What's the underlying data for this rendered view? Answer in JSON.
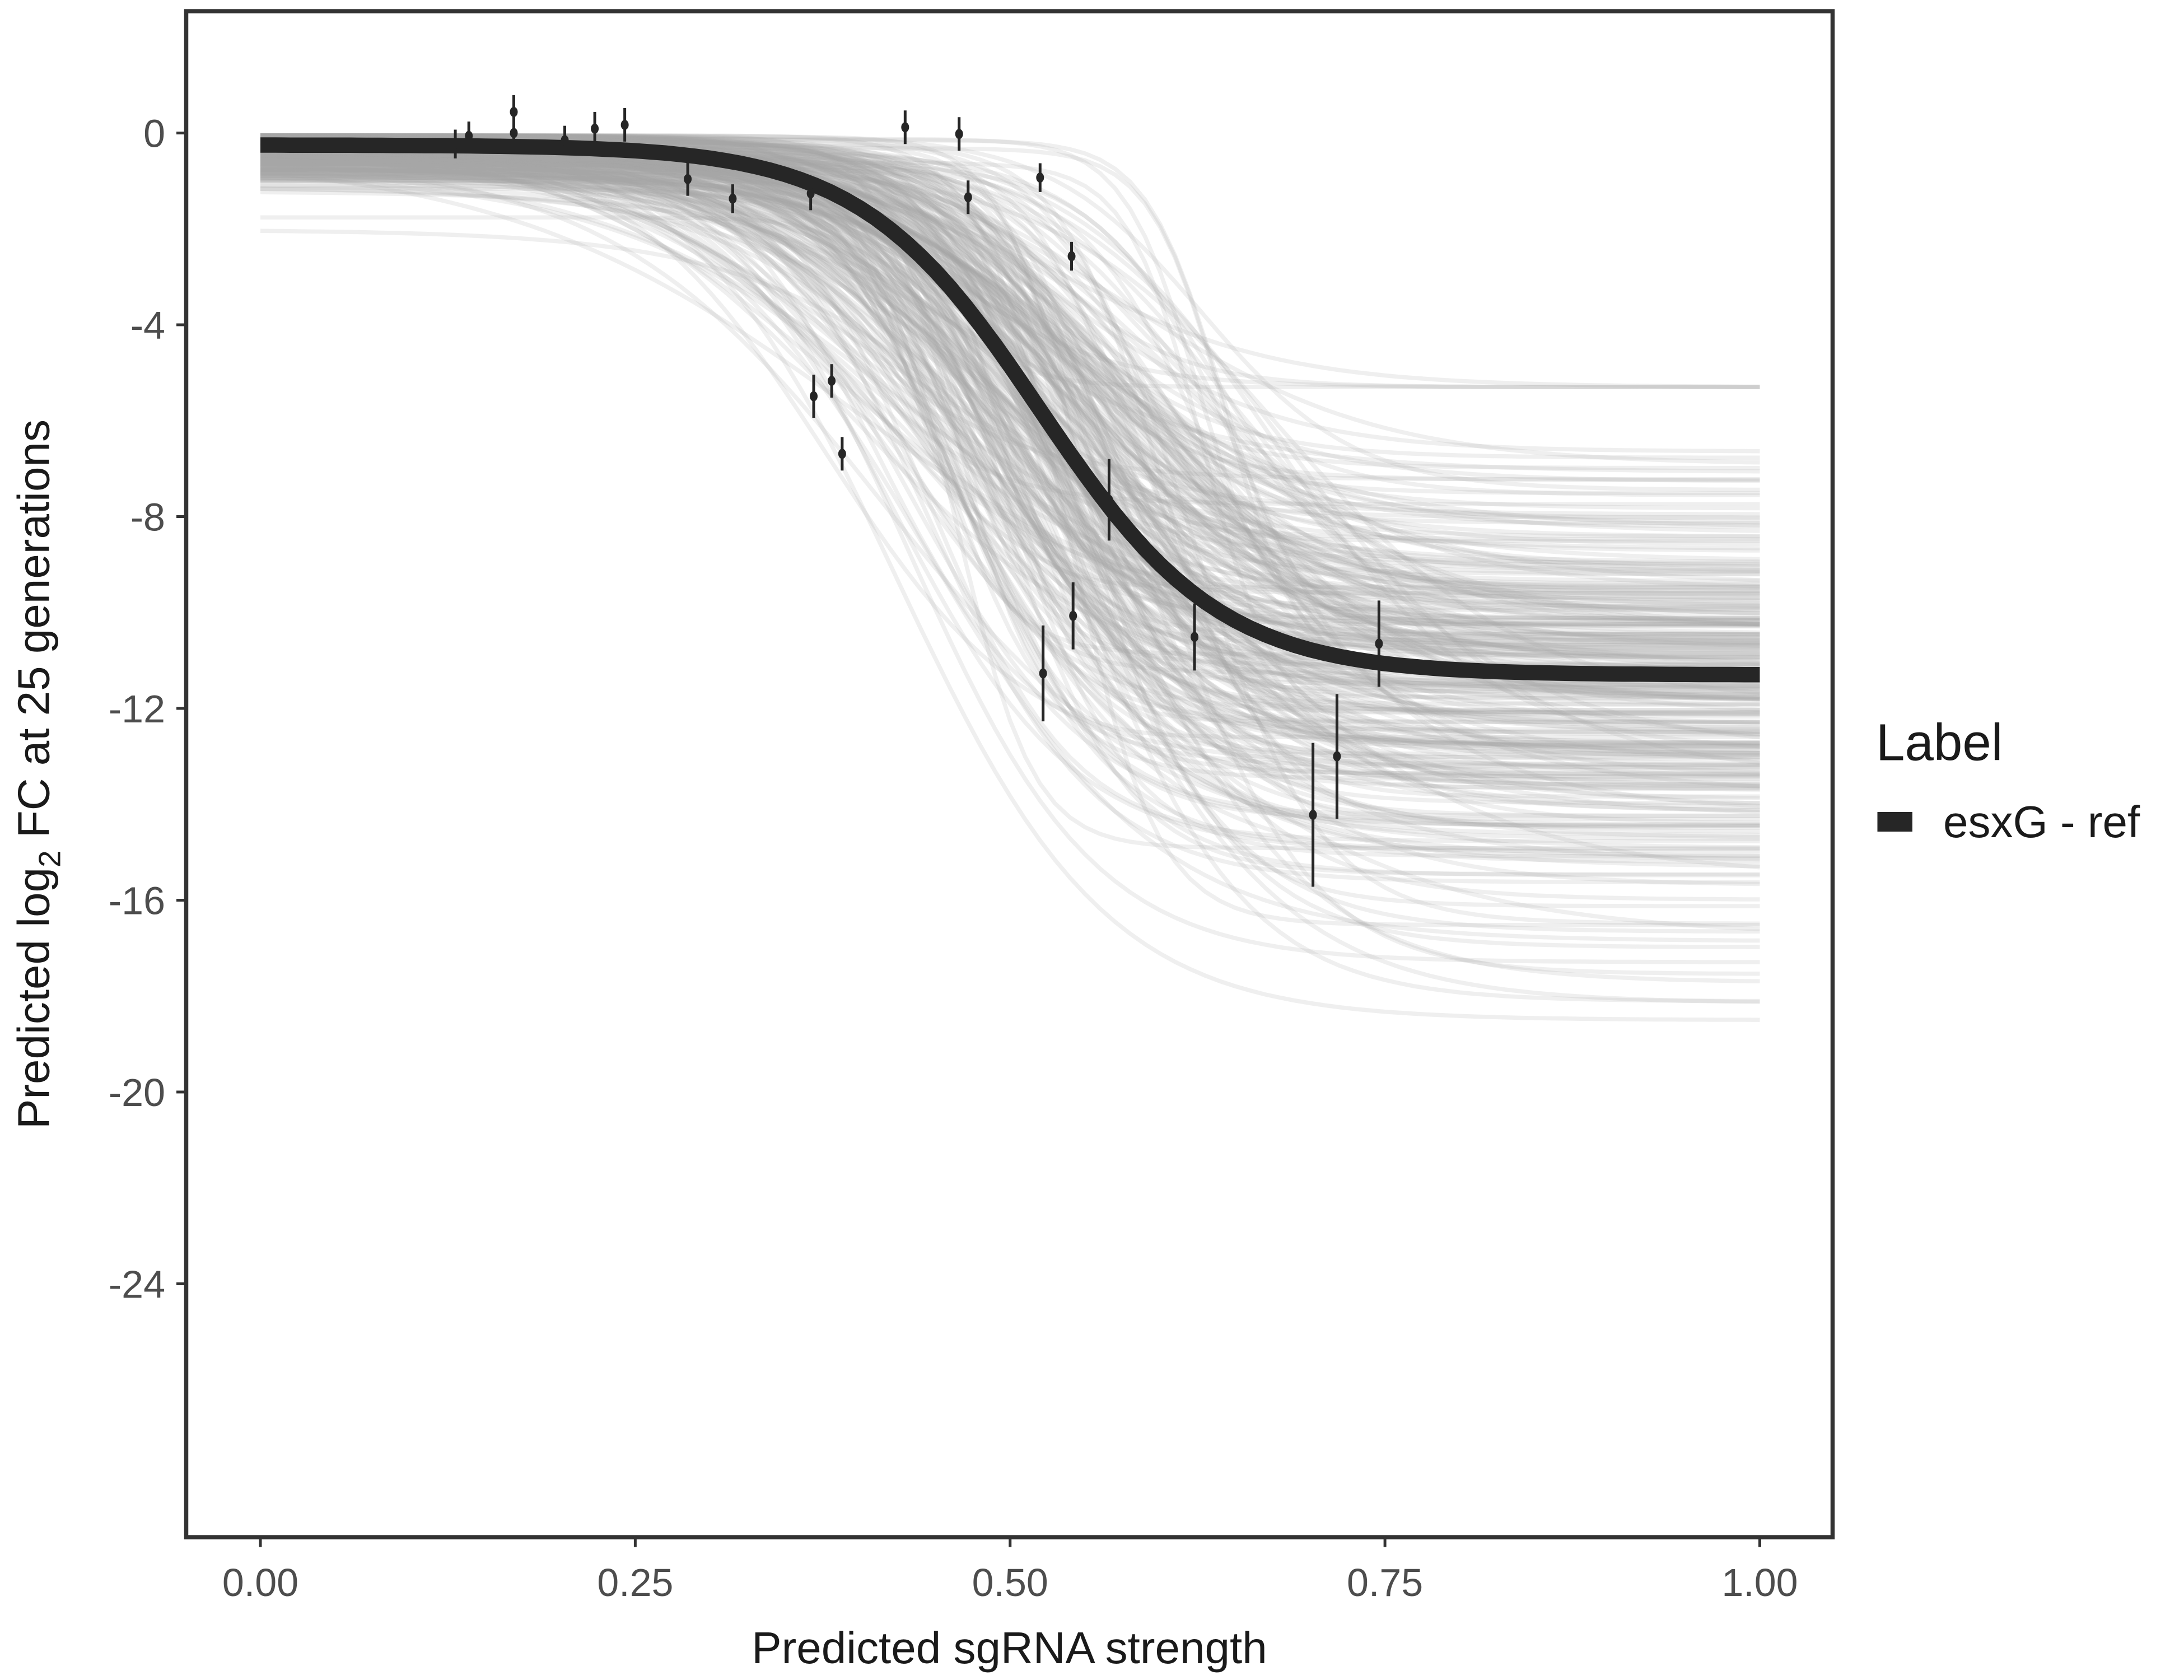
{
  "chart_data": {
    "type": "line",
    "title": "",
    "xlabel": "Predicted sgRNA strength",
    "ylabel": {
      "prefix": "Predicted  log",
      "sub": "2",
      "suffix": " FC at 25 generations"
    },
    "xlim": [
      -0.05,
      1.05
    ],
    "ylim": [
      -29.5,
      2.5
    ],
    "x_ticks": [
      0,
      0.25,
      0.5,
      0.75,
      1.0
    ],
    "x_tick_labels": [
      "0.00",
      "0.25",
      "0.50",
      "0.75",
      "1.00"
    ],
    "y_ticks": [
      0,
      -4,
      -8,
      -12,
      -16,
      -20,
      -24
    ],
    "y_tick_labels": [
      "0",
      "-4",
      "-8",
      "-12",
      "-16",
      "-20",
      "-24"
    ],
    "grid": false,
    "legend": {
      "title": "Label",
      "placement": "right",
      "entries": [
        {
          "label": "esxG - ref",
          "color": "#262626"
        }
      ]
    },
    "fit_curve": {
      "name": "esxG - ref",
      "model": "logistic",
      "upper": -0.25,
      "lower": -11.3,
      "midpoint": 0.52,
      "scale": 0.06,
      "x_range": [
        0,
        1
      ],
      "color": "#262626"
    },
    "posterior_draws": {
      "count": 300,
      "color": "#a6a6a6"
    },
    "points": [
      {
        "x": 0.13,
        "y": -0.23,
        "err": 0.3
      },
      {
        "x": 0.139,
        "y": -0.06,
        "err": 0.3
      },
      {
        "x": 0.169,
        "y": 0.44,
        "err": 0.35
      },
      {
        "x": 0.169,
        "y": 0.0,
        "err": 0.3
      },
      {
        "x": 0.203,
        "y": -0.15,
        "err": 0.3
      },
      {
        "x": 0.223,
        "y": 0.09,
        "err": 0.35
      },
      {
        "x": 0.243,
        "y": 0.17,
        "err": 0.35
      },
      {
        "x": 0.285,
        "y": -0.96,
        "err": 0.35
      },
      {
        "x": 0.315,
        "y": -1.37,
        "err": 0.3
      },
      {
        "x": 0.367,
        "y": -1.26,
        "err": 0.35
      },
      {
        "x": 0.369,
        "y": -5.49,
        "err": 0.45
      },
      {
        "x": 0.381,
        "y": -5.17,
        "err": 0.35
      },
      {
        "x": 0.388,
        "y": -6.69,
        "err": 0.35
      },
      {
        "x": 0.43,
        "y": 0.12,
        "err": 0.35
      },
      {
        "x": 0.466,
        "y": -0.02,
        "err": 0.35
      },
      {
        "x": 0.472,
        "y": -1.34,
        "err": 0.35
      },
      {
        "x": 0.52,
        "y": -0.93,
        "err": 0.3
      },
      {
        "x": 0.541,
        "y": -2.57,
        "err": 0.3
      },
      {
        "x": 0.522,
        "y": -11.27,
        "err": 1.0
      },
      {
        "x": 0.542,
        "y": -10.07,
        "err": 0.7
      },
      {
        "x": 0.566,
        "y": -7.65,
        "err": 0.85
      },
      {
        "x": 0.623,
        "y": -10.51,
        "err": 0.7
      },
      {
        "x": 0.702,
        "y": -14.22,
        "err": 1.5
      },
      {
        "x": 0.718,
        "y": -13.0,
        "err": 1.3
      },
      {
        "x": 0.746,
        "y": -10.65,
        "err": 0.9
      }
    ],
    "point_color": "#262626"
  }
}
